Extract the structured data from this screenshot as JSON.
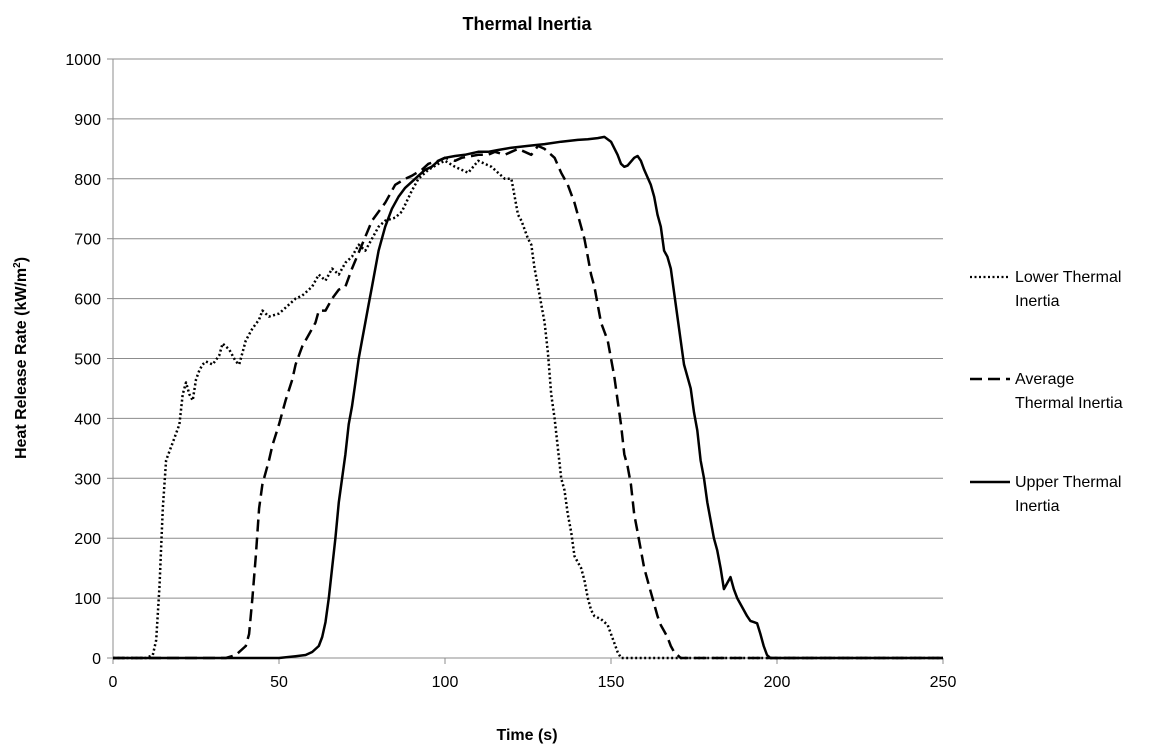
{
  "chart_data": {
    "type": "line",
    "title": "Thermal Inertia",
    "xlabel": "Time (s)",
    "ylabel_main": "Heat Release Rate (kW/m",
    "ylabel_sup": "2",
    "ylabel_end": ")",
    "xlim": [
      0,
      250
    ],
    "ylim": [
      0,
      1000
    ],
    "x_ticks": [
      0,
      50,
      100,
      150,
      200,
      250
    ],
    "y_ticks": [
      0,
      100,
      200,
      300,
      400,
      500,
      600,
      700,
      800,
      900,
      1000
    ],
    "grid": "horizontal",
    "legend_position": "right",
    "colors": {
      "series": "#000000",
      "grid": "#8c8c8c"
    },
    "series": [
      {
        "name_lines": [
          "Lower Thermal",
          "Inertia"
        ],
        "dash": "dotted",
        "points": [
          [
            0,
            0
          ],
          [
            10,
            0
          ],
          [
            12,
            5
          ],
          [
            13,
            30
          ],
          [
            14,
            120
          ],
          [
            15,
            250
          ],
          [
            16,
            330
          ],
          [
            18,
            360
          ],
          [
            20,
            390
          ],
          [
            21,
            440
          ],
          [
            22,
            460
          ],
          [
            23,
            440
          ],
          [
            24,
            430
          ],
          [
            25,
            465
          ],
          [
            26,
            480
          ],
          [
            27,
            490
          ],
          [
            28,
            495
          ],
          [
            30,
            490
          ],
          [
            32,
            505
          ],
          [
            33,
            525
          ],
          [
            35,
            515
          ],
          [
            37,
            495
          ],
          [
            38,
            490
          ],
          [
            40,
            530
          ],
          [
            42,
            550
          ],
          [
            44,
            565
          ],
          [
            45,
            580
          ],
          [
            47,
            570
          ],
          [
            50,
            575
          ],
          [
            53,
            590
          ],
          [
            55,
            600
          ],
          [
            57,
            605
          ],
          [
            58,
            610
          ],
          [
            60,
            620
          ],
          [
            62,
            640
          ],
          [
            64,
            630
          ],
          [
            66,
            650
          ],
          [
            68,
            640
          ],
          [
            70,
            660
          ],
          [
            72,
            670
          ],
          [
            74,
            690
          ],
          [
            76,
            680
          ],
          [
            78,
            700
          ],
          [
            80,
            720
          ],
          [
            82,
            730
          ],
          [
            85,
            735
          ],
          [
            87,
            745
          ],
          [
            90,
            780
          ],
          [
            92,
            800
          ],
          [
            95,
            815
          ],
          [
            98,
            825
          ],
          [
            100,
            830
          ],
          [
            103,
            820
          ],
          [
            105,
            815
          ],
          [
            107,
            810
          ],
          [
            110,
            830
          ],
          [
            112,
            825
          ],
          [
            114,
            820
          ],
          [
            116,
            810
          ],
          [
            118,
            800
          ],
          [
            120,
            800
          ],
          [
            121,
            770
          ],
          [
            122,
            740
          ],
          [
            123,
            730
          ],
          [
            124,
            715
          ],
          [
            125,
            700
          ],
          [
            126,
            690
          ],
          [
            127,
            650
          ],
          [
            128,
            620
          ],
          [
            129,
            590
          ],
          [
            130,
            560
          ],
          [
            131,
            510
          ],
          [
            132,
            440
          ],
          [
            133,
            400
          ],
          [
            134,
            350
          ],
          [
            135,
            300
          ],
          [
            136,
            280
          ],
          [
            137,
            240
          ],
          [
            138,
            210
          ],
          [
            139,
            170
          ],
          [
            140,
            160
          ],
          [
            141,
            150
          ],
          [
            142,
            130
          ],
          [
            143,
            100
          ],
          [
            144,
            80
          ],
          [
            145,
            70
          ],
          [
            147,
            65
          ],
          [
            148,
            60
          ],
          [
            149,
            55
          ],
          [
            150,
            40
          ],
          [
            151,
            25
          ],
          [
            152,
            10
          ],
          [
            153,
            0
          ],
          [
            250,
            0
          ]
        ]
      },
      {
        "name_lines": [
          "Average",
          "Thermal Inertia"
        ],
        "dash": "dashed",
        "points": [
          [
            0,
            0
          ],
          [
            34,
            0
          ],
          [
            37,
            5
          ],
          [
            40,
            20
          ],
          [
            41,
            40
          ],
          [
            42,
            100
          ],
          [
            43,
            170
          ],
          [
            44,
            250
          ],
          [
            45,
            290
          ],
          [
            47,
            330
          ],
          [
            48,
            355
          ],
          [
            50,
            390
          ],
          [
            52,
            430
          ],
          [
            54,
            465
          ],
          [
            55,
            490
          ],
          [
            57,
            520
          ],
          [
            59,
            540
          ],
          [
            61,
            560
          ],
          [
            62,
            580
          ],
          [
            64,
            580
          ],
          [
            66,
            600
          ],
          [
            68,
            615
          ],
          [
            70,
            620
          ],
          [
            72,
            650
          ],
          [
            75,
            690
          ],
          [
            78,
            730
          ],
          [
            82,
            760
          ],
          [
            85,
            790
          ],
          [
            88,
            800
          ],
          [
            90,
            805
          ],
          [
            93,
            815
          ],
          [
            95,
            825
          ],
          [
            98,
            830
          ],
          [
            100,
            835
          ],
          [
            103,
            830
          ],
          [
            105,
            835
          ],
          [
            110,
            840
          ],
          [
            113,
            840
          ],
          [
            115,
            845
          ],
          [
            118,
            840
          ],
          [
            120,
            845
          ],
          [
            122,
            850
          ],
          [
            124,
            845
          ],
          [
            126,
            840
          ],
          [
            128,
            855
          ],
          [
            130,
            850
          ],
          [
            133,
            835
          ],
          [
            135,
            810
          ],
          [
            137,
            790
          ],
          [
            139,
            760
          ],
          [
            141,
            720
          ],
          [
            142,
            700
          ],
          [
            143,
            670
          ],
          [
            144,
            640
          ],
          [
            145,
            620
          ],
          [
            146,
            590
          ],
          [
            147,
            560
          ],
          [
            149,
            530
          ],
          [
            150,
            500
          ],
          [
            151,
            470
          ],
          [
            152,
            430
          ],
          [
            153,
            390
          ],
          [
            154,
            340
          ],
          [
            155,
            320
          ],
          [
            156,
            290
          ],
          [
            157,
            240
          ],
          [
            158,
            210
          ],
          [
            159,
            180
          ],
          [
            160,
            150
          ],
          [
            161,
            130
          ],
          [
            162,
            110
          ],
          [
            163,
            90
          ],
          [
            164,
            70
          ],
          [
            165,
            55
          ],
          [
            166,
            45
          ],
          [
            167,
            35
          ],
          [
            168,
            20
          ],
          [
            169,
            10
          ],
          [
            170,
            5
          ],
          [
            171,
            0
          ],
          [
            250,
            0
          ]
        ]
      },
      {
        "name_lines": [
          "Upper Thermal",
          "Inertia"
        ],
        "dash": "solid",
        "points": [
          [
            0,
            0
          ],
          [
            50,
            0
          ],
          [
            55,
            3
          ],
          [
            58,
            5
          ],
          [
            60,
            10
          ],
          [
            62,
            20
          ],
          [
            63,
            35
          ],
          [
            64,
            60
          ],
          [
            65,
            100
          ],
          [
            66,
            150
          ],
          [
            67,
            200
          ],
          [
            68,
            260
          ],
          [
            69,
            300
          ],
          [
            70,
            340
          ],
          [
            71,
            390
          ],
          [
            72,
            420
          ],
          [
            73,
            460
          ],
          [
            74,
            500
          ],
          [
            75,
            530
          ],
          [
            76,
            560
          ],
          [
            77,
            590
          ],
          [
            78,
            620
          ],
          [
            79,
            650
          ],
          [
            80,
            680
          ],
          [
            82,
            720
          ],
          [
            84,
            750
          ],
          [
            86,
            770
          ],
          [
            88,
            785
          ],
          [
            90,
            795
          ],
          [
            92,
            805
          ],
          [
            94,
            815
          ],
          [
            96,
            820
          ],
          [
            98,
            830
          ],
          [
            100,
            835
          ],
          [
            103,
            838
          ],
          [
            106,
            840
          ],
          [
            110,
            845
          ],
          [
            113,
            845
          ],
          [
            116,
            848
          ],
          [
            120,
            852
          ],
          [
            125,
            855
          ],
          [
            130,
            858
          ],
          [
            135,
            862
          ],
          [
            140,
            865
          ],
          [
            143,
            866
          ],
          [
            146,
            868
          ],
          [
            148,
            870
          ],
          [
            150,
            862
          ],
          [
            152,
            840
          ],
          [
            153,
            825
          ],
          [
            154,
            820
          ],
          [
            155,
            822
          ],
          [
            157,
            835
          ],
          [
            158,
            838
          ],
          [
            159,
            830
          ],
          [
            160,
            815
          ],
          [
            162,
            790
          ],
          [
            163,
            770
          ],
          [
            164,
            740
          ],
          [
            165,
            720
          ],
          [
            166,
            680
          ],
          [
            167,
            670
          ],
          [
            168,
            650
          ],
          [
            169,
            610
          ],
          [
            170,
            570
          ],
          [
            171,
            530
          ],
          [
            172,
            490
          ],
          [
            174,
            450
          ],
          [
            175,
            410
          ],
          [
            176,
            380
          ],
          [
            177,
            330
          ],
          [
            178,
            300
          ],
          [
            179,
            260
          ],
          [
            180,
            230
          ],
          [
            181,
            200
          ],
          [
            182,
            180
          ],
          [
            183,
            150
          ],
          [
            184,
            115
          ],
          [
            185,
            125
          ],
          [
            186,
            135
          ],
          [
            187,
            115
          ],
          [
            188,
            100
          ],
          [
            189,
            90
          ],
          [
            190,
            80
          ],
          [
            191,
            70
          ],
          [
            192,
            62
          ],
          [
            193,
            60
          ],
          [
            194,
            58
          ],
          [
            195,
            40
          ],
          [
            196,
            20
          ],
          [
            197,
            5
          ],
          [
            198,
            0
          ],
          [
            250,
            0
          ]
        ]
      }
    ]
  }
}
